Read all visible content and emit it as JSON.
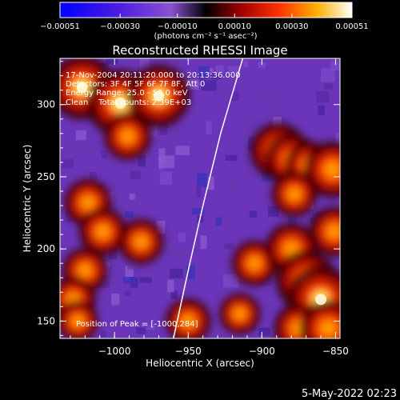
{
  "chart_data": {
    "type": "heatmap",
    "title": "Reconstructed RHESSI Image",
    "xlabel": "Heliocentric X (arcsec)",
    "ylabel": "Heliocentric Y (arcsec)",
    "xlim": [
      -1037,
      -847
    ],
    "ylim": [
      138,
      332
    ],
    "x_ticks": [
      -1000,
      -950,
      -900,
      -850
    ],
    "x_tick_labels": [
      "−1000",
      "−950",
      "−900",
      "−850"
    ],
    "y_ticks": [
      150,
      200,
      250,
      300
    ],
    "y_tick_labels": [
      "150",
      "200",
      "250",
      "300"
    ],
    "colorbar": {
      "range": [
        -0.00051,
        0.00051
      ],
      "ticks": [
        -0.00051,
        -0.0003,
        -0.0001,
        0.0001,
        0.0003,
        0.00051
      ],
      "tick_labels": [
        "−0.00051",
        "−0.00030",
        "−0.00010",
        "0.00010",
        "0.00030",
        "0.00051"
      ],
      "units": "(photons cm⁻² s⁻¹ asec⁻²)",
      "colors": [
        "#0000ff",
        "#5a1fd8",
        "#7a3dc0",
        "#3a0000",
        "#b40000",
        "#ff6000",
        "#ffc000",
        "#ffffff"
      ]
    },
    "limb_curve": {
      "description": "solar limb",
      "points": [
        [
          -960,
          138
        ],
        [
          -950,
          185
        ],
        [
          -940,
          230
        ],
        [
          -928,
          280
        ],
        [
          -913,
          332
        ]
      ]
    },
    "hotspots": [
      {
        "x": -1022,
        "y": 312,
        "intensity": 0.95
      },
      {
        "x": -996,
        "y": 301,
        "intensity": 1.0
      },
      {
        "x": -970,
        "y": 306,
        "intensity": 0.9
      },
      {
        "x": -991,
        "y": 278,
        "intensity": 0.55
      },
      {
        "x": -889,
        "y": 268,
        "intensity": 0.75
      },
      {
        "x": -880,
        "y": 262,
        "intensity": 0.65
      },
      {
        "x": -868,
        "y": 258,
        "intensity": 0.55
      },
      {
        "x": -852,
        "y": 255,
        "intensity": 0.75
      },
      {
        "x": -878,
        "y": 238,
        "intensity": 0.5
      },
      {
        "x": -1018,
        "y": 232,
        "intensity": 0.55
      },
      {
        "x": -1008,
        "y": 212,
        "intensity": 0.55
      },
      {
        "x": -982,
        "y": 205,
        "intensity": 0.5
      },
      {
        "x": -1020,
        "y": 185,
        "intensity": 0.5
      },
      {
        "x": -1028,
        "y": 165,
        "intensity": 0.5
      },
      {
        "x": -1025,
        "y": 150,
        "intensity": 0.4
      },
      {
        "x": -950,
        "y": 150,
        "intensity": 0.5
      },
      {
        "x": -915,
        "y": 155,
        "intensity": 0.4
      },
      {
        "x": -905,
        "y": 190,
        "intensity": 0.5
      },
      {
        "x": -880,
        "y": 200,
        "intensity": 0.65
      },
      {
        "x": -870,
        "y": 178,
        "intensity": 0.85
      },
      {
        "x": -860,
        "y": 165,
        "intensity": 1.0
      },
      {
        "x": -875,
        "y": 145,
        "intensity": 0.6
      },
      {
        "x": -855,
        "y": 145,
        "intensity": 0.75
      },
      {
        "x": -851,
        "y": 212,
        "intensity": 0.6
      }
    ],
    "info_lines": [
      "17-Nov-2004 20:11:20.000 to 20:13:36.000",
      "Detectors: 3F 4F 5F 6F 7F 8F, Att 0",
      "Energy Range: 25.0 - 50.0 keV",
      "Clean    Total counts: 2.39E+03"
    ],
    "peak_text": "Position of Peak = [-1000,284]"
  },
  "footer": {
    "date": "5-May-2022 02:23"
  }
}
